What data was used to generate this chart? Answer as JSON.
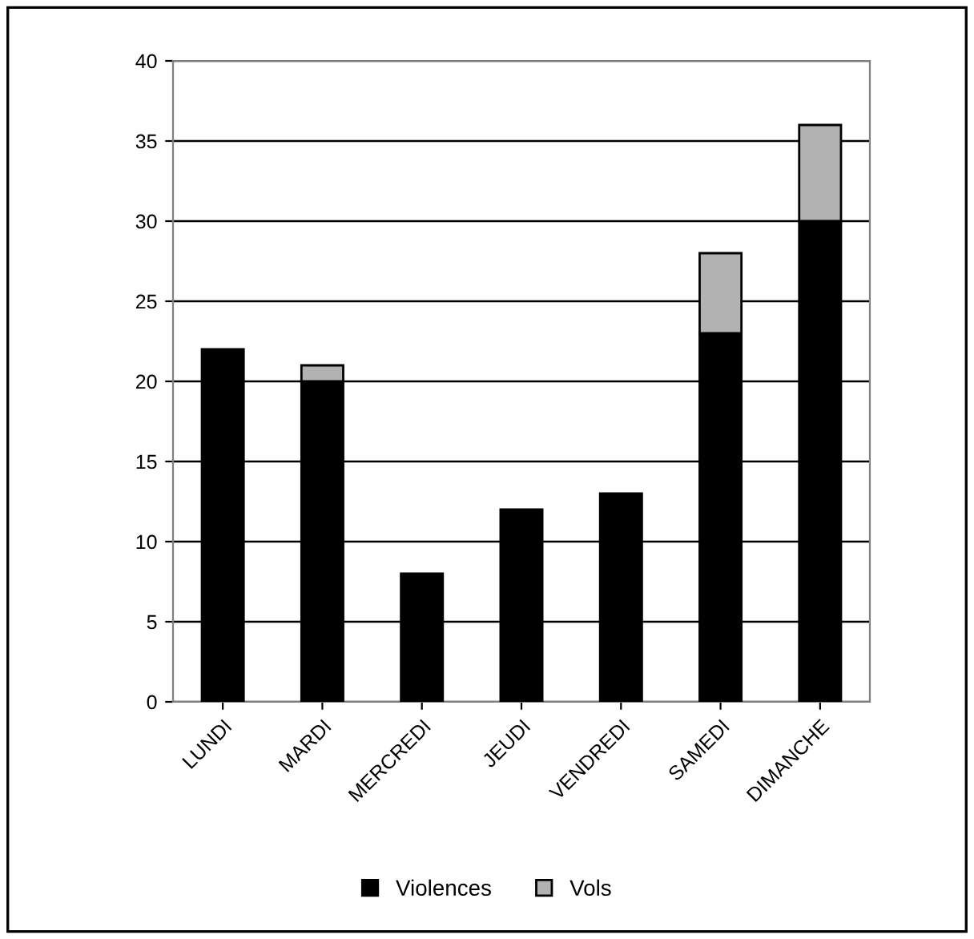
{
  "chart_data": {
    "type": "bar",
    "stacked": true,
    "categories": [
      "LUNDI",
      "MARDI",
      "MERCREDI",
      "JEUDI",
      "VENDREDI",
      "SAMEDI",
      "DIMANCHE"
    ],
    "series": [
      {
        "name": "Violences",
        "color": "#000000",
        "values": [
          22,
          20,
          8,
          12,
          13,
          23,
          30
        ]
      },
      {
        "name": "Vols",
        "color": "#b2b2b2",
        "values": [
          null,
          1,
          null,
          null,
          null,
          5,
          6
        ]
      }
    ],
    "ylim": [
      0,
      40
    ],
    "yticks": [
      0,
      5,
      10,
      15,
      20,
      25,
      30,
      35,
      40
    ],
    "grid": "y",
    "legend": "bottom"
  }
}
